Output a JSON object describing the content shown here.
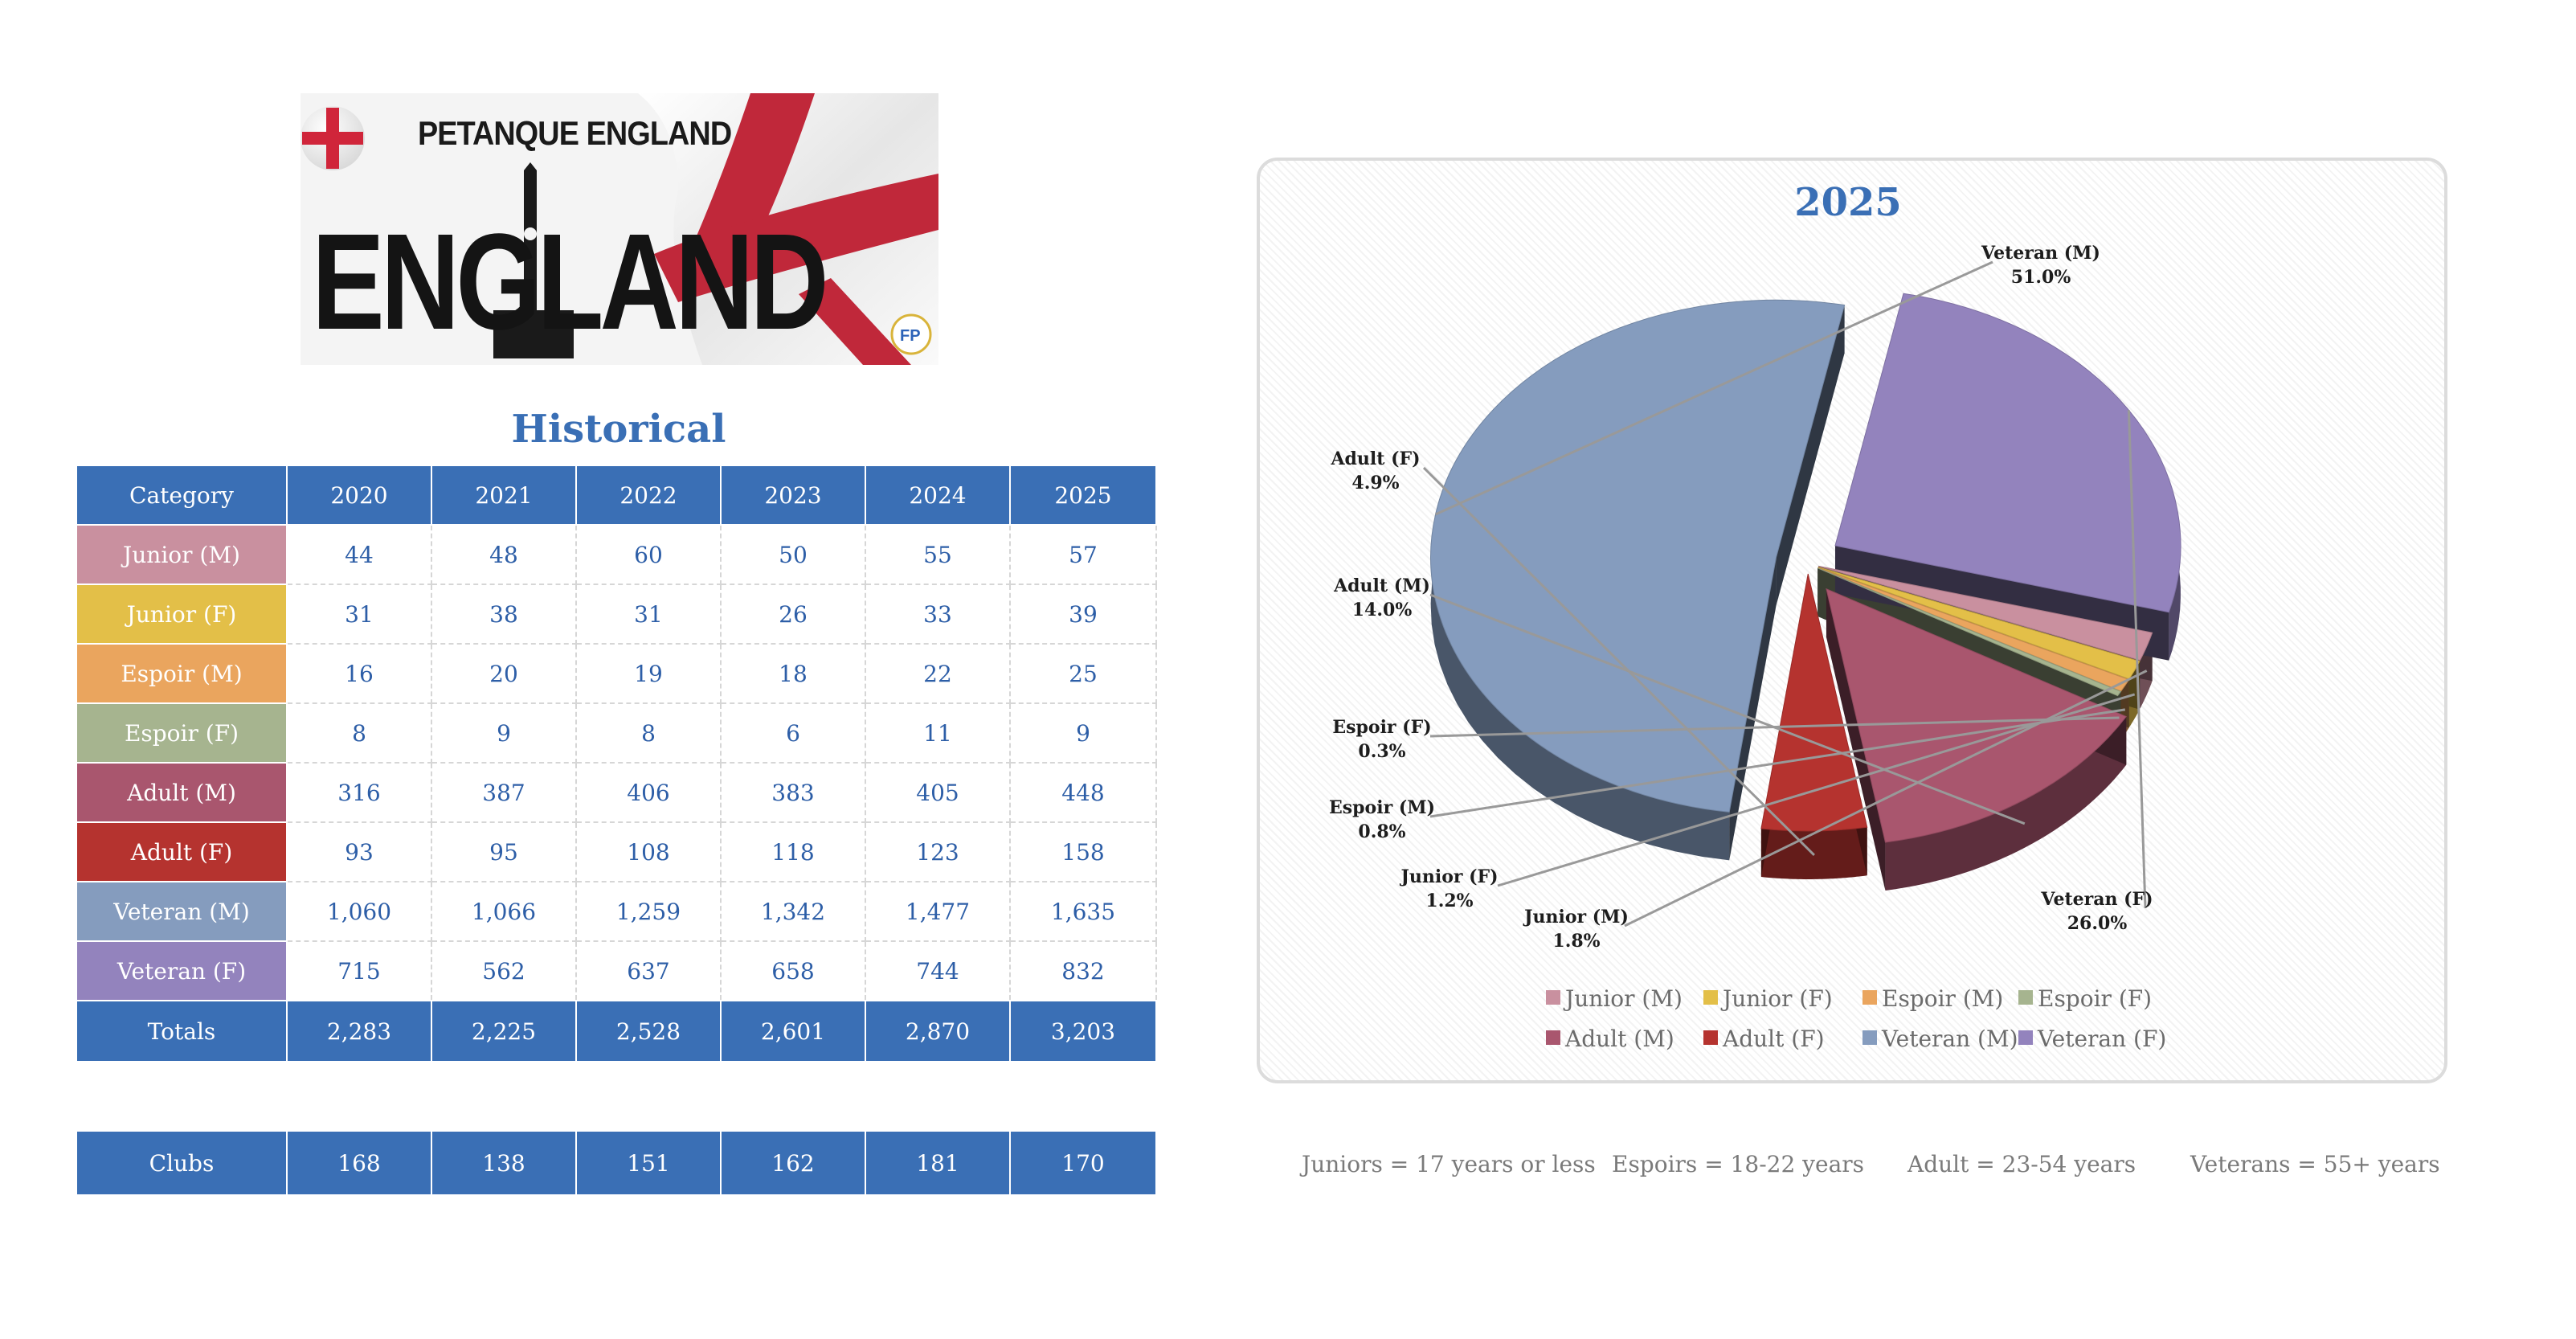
{
  "logo": {
    "title": "PETANQUE ENGLAND",
    "word": "ENGLAND"
  },
  "table": {
    "title": "Historical",
    "header": [
      "Category",
      "2020",
      "2021",
      "2022",
      "2023",
      "2024",
      "2025"
    ],
    "rows": [
      {
        "label": "Junior (M)",
        "color": "#c9909f",
        "values": [
          "44",
          "48",
          "60",
          "50",
          "55",
          "57"
        ]
      },
      {
        "label": "Junior (F)",
        "color": "#e3bf48",
        "values": [
          "31",
          "38",
          "31",
          "26",
          "33",
          "39"
        ]
      },
      {
        "label": "Espoir (M)",
        "color": "#eaa55e",
        "values": [
          "16",
          "20",
          "19",
          "18",
          "22",
          "25"
        ]
      },
      {
        "label": "Espoir (F)",
        "color": "#a6b48f",
        "values": [
          "8",
          "9",
          "8",
          "6",
          "11",
          "9"
        ]
      },
      {
        "label": "Adult (M)",
        "color": "#a9566e",
        "values": [
          "316",
          "387",
          "406",
          "383",
          "405",
          "448"
        ]
      },
      {
        "label": "Adult (F)",
        "color": "#b5332f",
        "values": [
          "93",
          "95",
          "108",
          "118",
          "123",
          "158"
        ]
      },
      {
        "label": "Veteran (M)",
        "color": "#859cbe",
        "values": [
          "1,060",
          "1,066",
          "1,259",
          "1,342",
          "1,477",
          "1,635"
        ]
      },
      {
        "label": "Veteran (F)",
        "color": "#9383bd",
        "values": [
          "715",
          "562",
          "637",
          "658",
          "744",
          "832"
        ]
      }
    ],
    "totals": {
      "label": "Totals",
      "values": [
        "2,283",
        "2,225",
        "2,528",
        "2,601",
        "2,870",
        "3,203"
      ]
    },
    "clubs": {
      "label": "Clubs",
      "values": [
        "168",
        "138",
        "151",
        "162",
        "181",
        "170"
      ]
    }
  },
  "chart_data": {
    "type": "pie",
    "title": "2025",
    "categories": [
      "Junior (M)",
      "Junior (F)",
      "Espoir (M)",
      "Espoir (F)",
      "Adult (M)",
      "Adult (F)",
      "Veteran (M)",
      "Veteran (F)"
    ],
    "values": [
      1.8,
      1.2,
      0.8,
      0.3,
      14.0,
      4.9,
      51.0,
      26.0
    ],
    "value_labels": [
      "1.8%",
      "1.2%",
      "0.8%",
      "0.3%",
      "14.0%",
      "4.9%",
      "51.0%",
      "26.0%"
    ],
    "colors": [
      "#c9909f",
      "#e3bf48",
      "#eaa55e",
      "#a6b48f",
      "#a9566e",
      "#b5332f",
      "#859cbe",
      "#9383bd"
    ],
    "style": "3d-exploded",
    "legend": "bottom"
  },
  "notes": [
    "Juniors = 17 years or less",
    "Espoirs = 18-22 years",
    "Adult = 23-54 years",
    "Veterans = 55+ years"
  ]
}
